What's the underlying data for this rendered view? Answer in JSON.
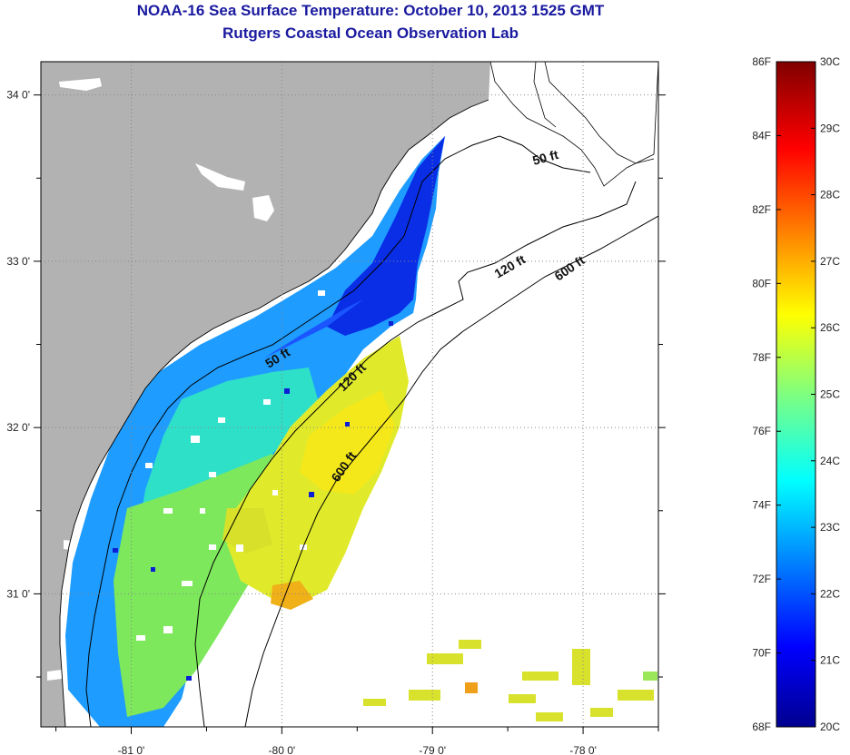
{
  "titles": {
    "line1": "NOAA-16 Sea Surface Temperature:  October 10, 2013 1525 GMT",
    "line2": "Rutgers Coastal Ocean Observation Lab"
  },
  "map": {
    "lon_range": [
      -81.6,
      -77.5
    ],
    "lat_range": [
      30.2,
      34.2
    ],
    "lon_ticks": [
      {
        "value": -81,
        "label": "-81 0'"
      },
      {
        "value": -80,
        "label": "-80 0'"
      },
      {
        "value": -79,
        "label": "-79 0'"
      },
      {
        "value": -78,
        "label": "-78 0'"
      }
    ],
    "lat_ticks": [
      {
        "value": 34,
        "label": "34 0'"
      },
      {
        "value": 33,
        "label": "33 0'"
      },
      {
        "value": 32,
        "label": "32 0'"
      },
      {
        "value": 31,
        "label": "31 0'"
      }
    ],
    "contour_labels": [
      "50 ft",
      "120 ft",
      "600 ft",
      "50 ft",
      "120 ft",
      "600 ft"
    ],
    "colors": {
      "land": "#b2b2b2",
      "ocean_nodata": "#ffffff",
      "isobath": "#000000",
      "grid": "#888888"
    }
  },
  "colorbar": {
    "fahrenheit": [
      "86F",
      "84F",
      "82F",
      "80F",
      "78F",
      "76F",
      "74F",
      "72F",
      "70F",
      "68F"
    ],
    "celsius": [
      "30C",
      "29C",
      "28C",
      "27C",
      "26C",
      "25C",
      "24C",
      "23C",
      "22C",
      "21C",
      "20C"
    ],
    "colormap": "jet"
  }
}
